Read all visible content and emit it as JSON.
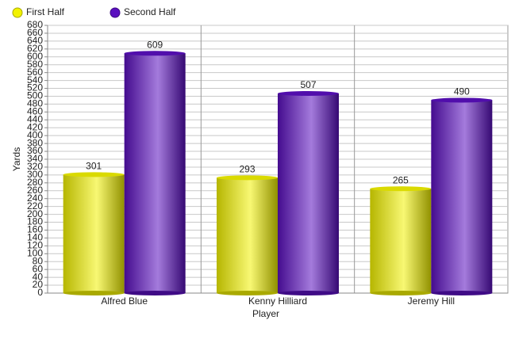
{
  "chart_data": {
    "type": "bar",
    "categories": [
      "Alfred Blue",
      "Kenny Hilliard",
      "Jeremy Hill"
    ],
    "series": [
      {
        "name": "First Half",
        "color": "#f2f200",
        "values": [
          301,
          293,
          265
        ]
      },
      {
        "name": "Second Half",
        "color": "#5a0fbf",
        "values": [
          609,
          507,
          490
        ]
      }
    ],
    "x_label": "Player",
    "y_label": "Yards",
    "ylim": [
      0,
      680
    ],
    "yticks": [
      0,
      20,
      40,
      60,
      80,
      100,
      120,
      140,
      160,
      180,
      200,
      220,
      240,
      260,
      280,
      300,
      320,
      340,
      360,
      380,
      400,
      420,
      440,
      460,
      480,
      500,
      520,
      540,
      560,
      580,
      600,
      620,
      640,
      660,
      680
    ],
    "grid": true,
    "legend": "top-left"
  }
}
